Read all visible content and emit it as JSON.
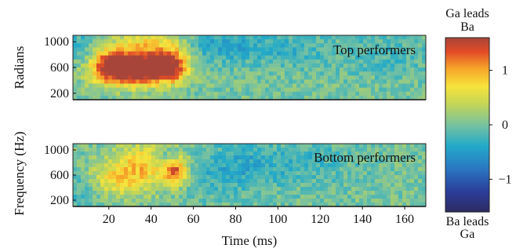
{
  "chart_data": {
    "type": "heatmap",
    "panels": [
      {
        "label": "Top performers",
        "ylabel": "Radians",
        "xlim": [
          3,
          170
        ],
        "ylim": [
          100,
          1100
        ],
        "yticks": [
          200,
          600,
          1000
        ],
        "blobs": [
          {
            "x": 20,
            "y": 600,
            "sx": 7,
            "sy": 180,
            "v": 1.15
          },
          {
            "x": 30,
            "y": 580,
            "sx": 8,
            "sy": 170,
            "v": 1.1
          },
          {
            "x": 40,
            "y": 550,
            "sx": 6,
            "sy": 160,
            "v": 0.95
          },
          {
            "x": 50,
            "y": 600,
            "sx": 5,
            "sy": 160,
            "v": 1.35
          },
          {
            "x": 35,
            "y": 750,
            "sx": 16,
            "sy": 260,
            "v": 0.6
          },
          {
            "x": 45,
            "y": 950,
            "sx": 10,
            "sy": 150,
            "v": 0.4
          },
          {
            "x": 8,
            "y": 900,
            "sx": 6,
            "sy": 220,
            "v": -0.35
          },
          {
            "x": 70,
            "y": 950,
            "sx": 12,
            "sy": 200,
            "v": -0.45
          },
          {
            "x": 100,
            "y": 900,
            "sx": 15,
            "sy": 180,
            "v": -0.3
          },
          {
            "x": 150,
            "y": 800,
            "sx": 20,
            "sy": 250,
            "v": -0.2
          }
        ]
      },
      {
        "label": "Bottom performers",
        "ylabel": "Frequency (Hz)",
        "xlim": [
          3,
          170
        ],
        "ylim": [
          100,
          1100
        ],
        "yticks": [
          200,
          600,
          1000
        ],
        "blobs": [
          {
            "x": 20,
            "y": 550,
            "sx": 9,
            "sy": 200,
            "v": 0.55
          },
          {
            "x": 35,
            "y": 600,
            "sx": 9,
            "sy": 220,
            "v": 0.6
          },
          {
            "x": 52,
            "y": 650,
            "sx": 4,
            "sy": 150,
            "v": 1.2
          },
          {
            "x": 40,
            "y": 900,
            "sx": 12,
            "sy": 180,
            "v": 0.5
          },
          {
            "x": 47,
            "y": 900,
            "sx": 4,
            "sy": 100,
            "v": -0.5
          },
          {
            "x": 8,
            "y": 400,
            "sx": 6,
            "sy": 250,
            "v": -0.3
          },
          {
            "x": 75,
            "y": 700,
            "sx": 15,
            "sy": 300,
            "v": -0.35
          },
          {
            "x": 110,
            "y": 800,
            "sx": 20,
            "sy": 250,
            "v": -0.25
          }
        ]
      }
    ],
    "xlabel": "Time (ms)",
    "xticks": [
      20,
      40,
      60,
      80,
      100,
      120,
      140,
      160
    ],
    "colorbar": {
      "range": [
        -1.6,
        1.6
      ],
      "ticks": [
        1,
        0,
        -1
      ],
      "tick_labels": [
        "1",
        "0",
        "−1"
      ],
      "top_label": [
        "Ga leads",
        "Ba"
      ],
      "bottom_label": [
        "Ba leads",
        "Ga"
      ]
    }
  }
}
